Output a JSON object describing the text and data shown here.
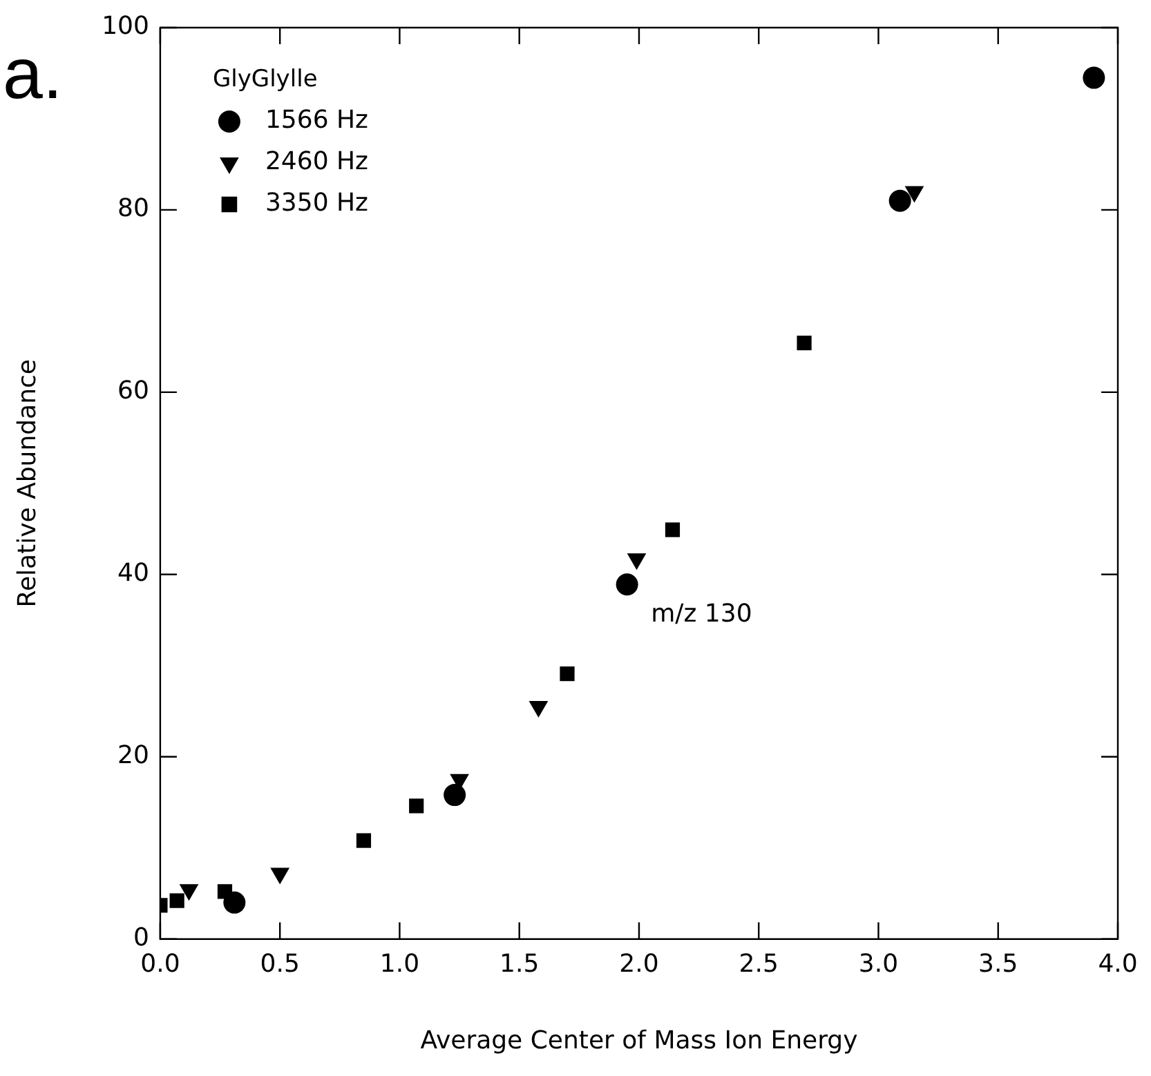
{
  "chart_data": {
    "type": "scatter",
    "xlabel": "Average Center of Mass Ion Energy",
    "ylabel": "Relative Abundance",
    "legend_title": "GlyGlylle",
    "annotations": [
      "a.",
      "m/z 130"
    ],
    "xlim": [
      0,
      4
    ],
    "ylim": [
      0,
      100
    ],
    "xticks": [
      {
        "value": 0,
        "label": "0.0"
      },
      {
        "value": 0.5,
        "label": "0.5"
      },
      {
        "value": 1,
        "label": "1.0"
      },
      {
        "value": 1.5,
        "label": "1.5"
      },
      {
        "value": 2,
        "label": "2.0"
      },
      {
        "value": 2.5,
        "label": "2.5"
      },
      {
        "value": 3,
        "label": "3.0"
      },
      {
        "value": 3.5,
        "label": "3.5"
      },
      {
        "value": 4,
        "label": "4.0"
      }
    ],
    "yticks": [
      0,
      20,
      40,
      60,
      80,
      100
    ],
    "grid": false,
    "legend": "top left",
    "series": [
      {
        "name": "1566 Hz",
        "color": "#000000",
        "marker": "circle",
        "x": [
          0.31,
          1.23,
          1.95,
          3.09,
          3.9
        ],
        "values": [
          4.0,
          15.8,
          38.9,
          81.0,
          94.5
        ]
      },
      {
        "name": "2460 Hz",
        "color": "#000000",
        "marker": "triangle",
        "x": [
          0.12,
          0.5,
          1.25,
          1.58,
          1.99,
          3.15
        ],
        "values": [
          5.4,
          7.2,
          17.5,
          25.5,
          41.7,
          82.0
        ]
      },
      {
        "name": "3350 Hz",
        "color": "#000000",
        "marker": "square",
        "x": [
          0.0,
          0.07,
          0.27,
          0.85,
          1.07,
          1.7,
          2.14,
          2.69
        ],
        "values": [
          3.7,
          4.2,
          5.2,
          10.8,
          14.6,
          29.1,
          44.9,
          65.4
        ]
      }
    ]
  }
}
